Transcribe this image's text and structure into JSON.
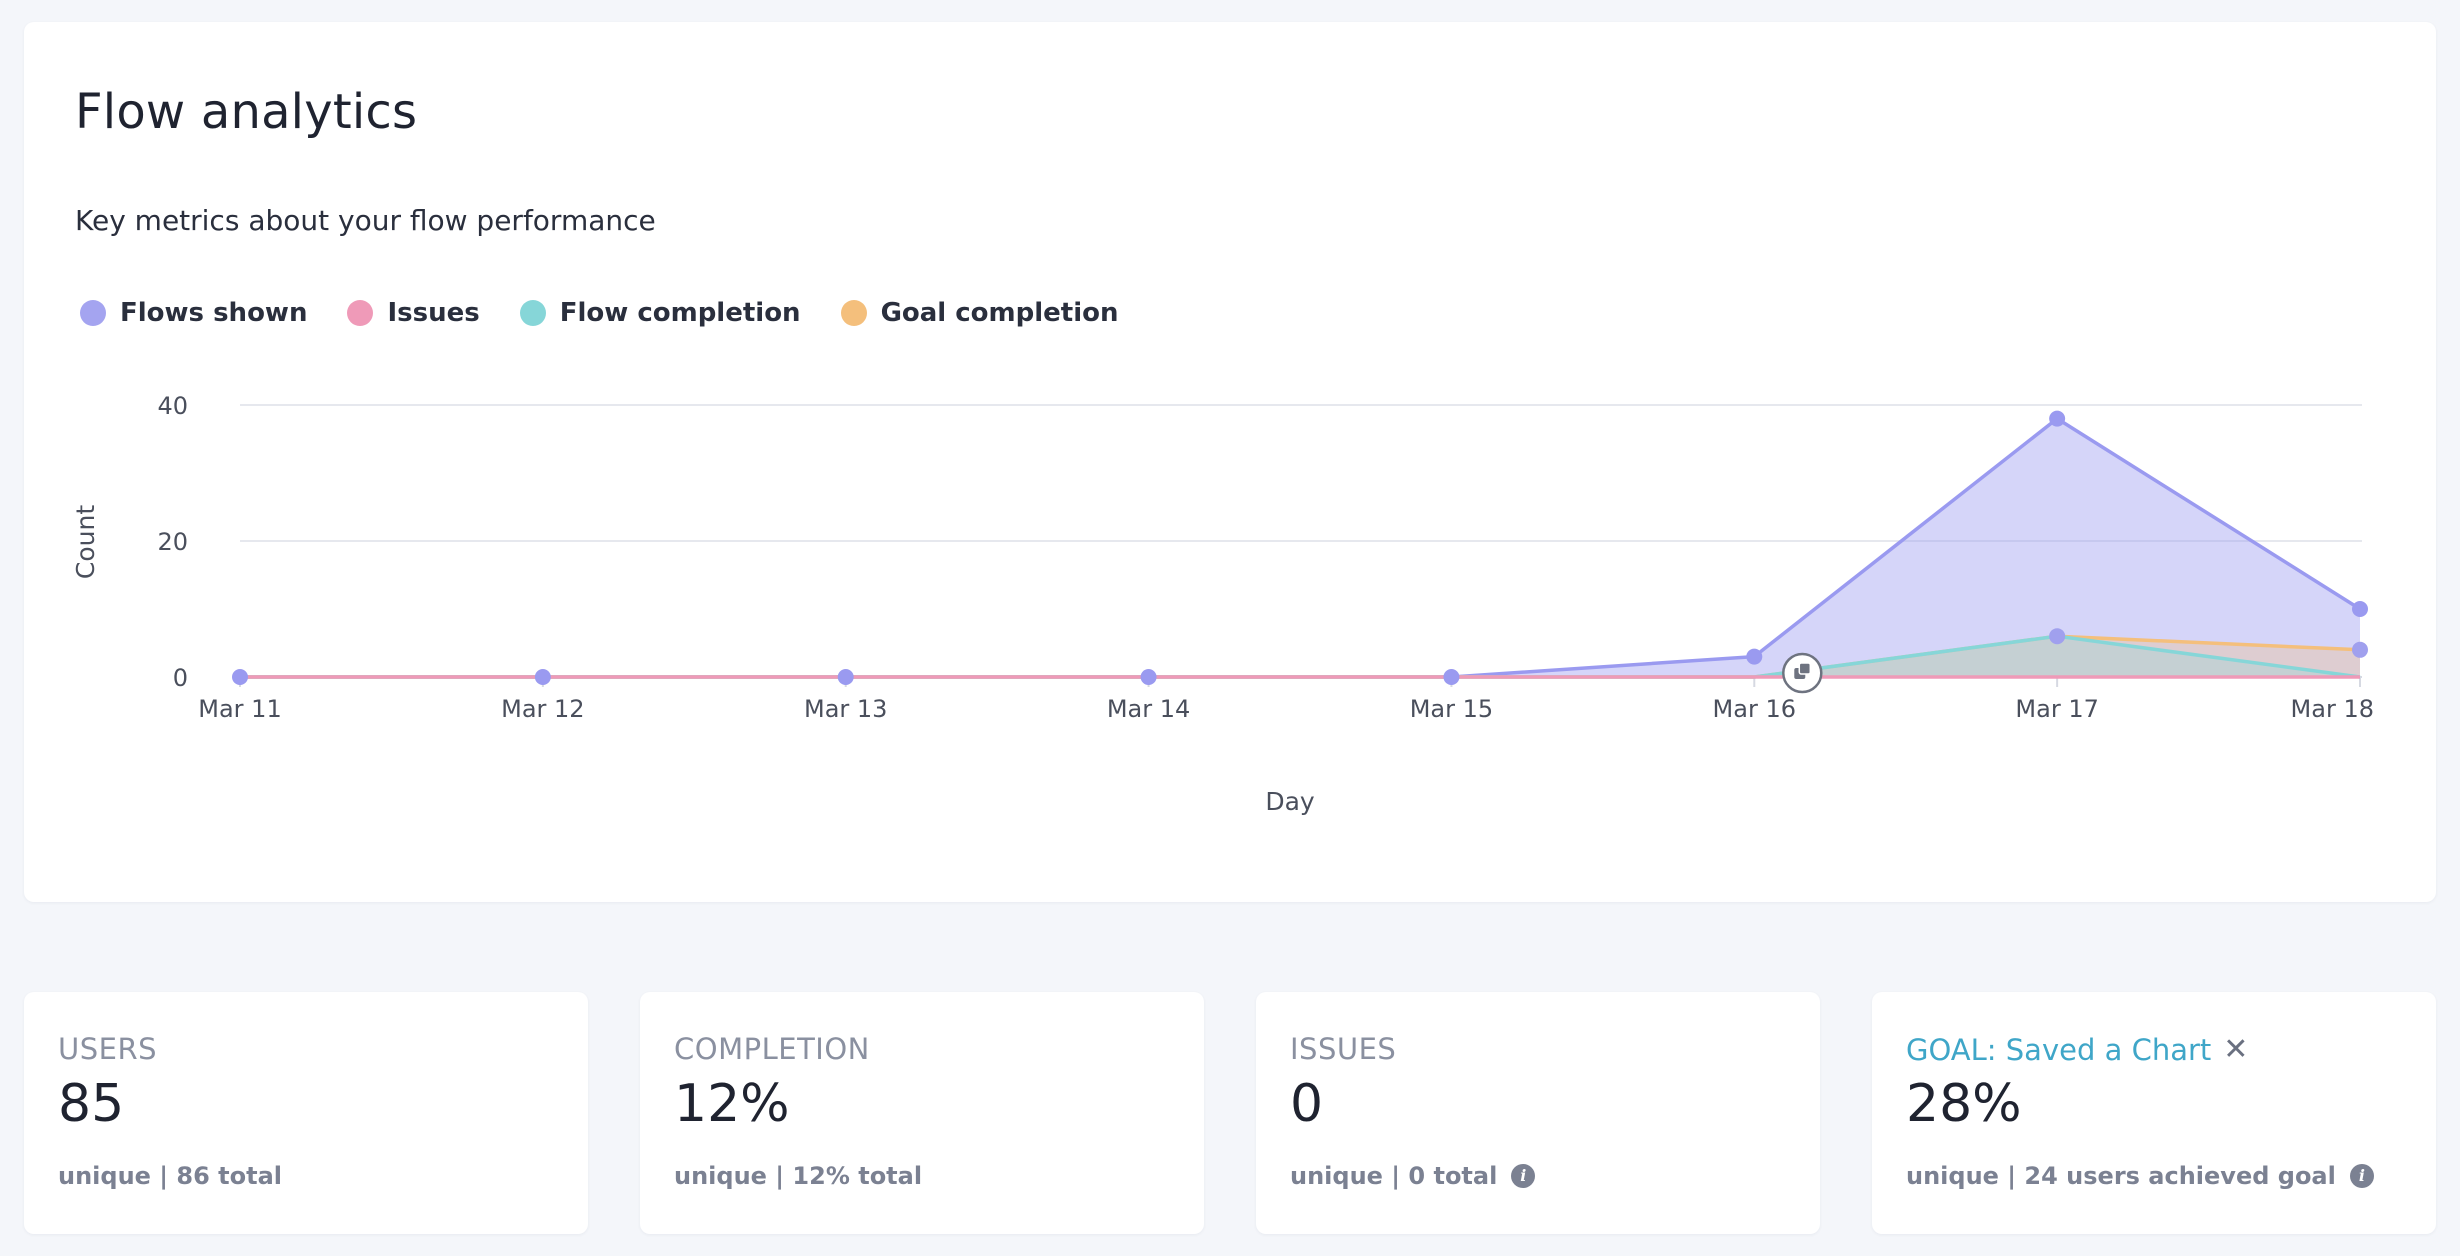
{
  "header": {
    "title": "Flow analytics",
    "subtitle": "Key metrics about your flow performance"
  },
  "legend": [
    {
      "label": "Flows shown",
      "color": "#a4a4f0"
    },
    {
      "label": "Issues",
      "color": "#ef9ab8"
    },
    {
      "label": "Flow completion",
      "color": "#86d6d8"
    },
    {
      "label": "Goal completion",
      "color": "#f4bf7c"
    }
  ],
  "chart_data": {
    "type": "area",
    "xlabel": "Day",
    "ylabel": "Count",
    "ylim": [
      0,
      40
    ],
    "yticks": [
      0,
      20,
      40
    ],
    "grid": true,
    "legend_position": "top-left",
    "categories": [
      "Mar 11",
      "Mar 12",
      "Mar 13",
      "Mar 14",
      "Mar 15",
      "Mar 16",
      "Mar 17",
      "Mar 18"
    ],
    "series": [
      {
        "name": "Flows shown",
        "color": "#9a9af0",
        "values": [
          0,
          0,
          0,
          0,
          0,
          3,
          38,
          10
        ]
      },
      {
        "name": "Issues",
        "color": "#ef9ab8",
        "values": [
          0,
          0,
          0,
          0,
          0,
          0,
          0,
          0
        ]
      },
      {
        "name": "Flow completion",
        "color": "#86d6d8",
        "values": [
          0,
          0,
          0,
          0,
          0,
          0,
          6,
          0
        ]
      },
      {
        "name": "Goal completion",
        "color": "#f4bf7c",
        "values": [
          0,
          0,
          0,
          0,
          0,
          0,
          6,
          4
        ]
      }
    ]
  },
  "stats": {
    "users": {
      "label": "USERS",
      "value": "85",
      "foot": "unique | 86 total"
    },
    "completion": {
      "label": "COMPLETION",
      "value": "12%",
      "foot": "unique | 12% total"
    },
    "issues": {
      "label": "ISSUES",
      "value": "0",
      "foot": "unique | 0 total"
    },
    "goal": {
      "label": "GOAL: Saved a Chart",
      "value": "28%",
      "foot": "unique | 24 users achieved goal",
      "accent": "#3fa6c8"
    }
  },
  "icons": {
    "close": "close-icon",
    "info": "info-icon",
    "copy": "copy-icon"
  }
}
